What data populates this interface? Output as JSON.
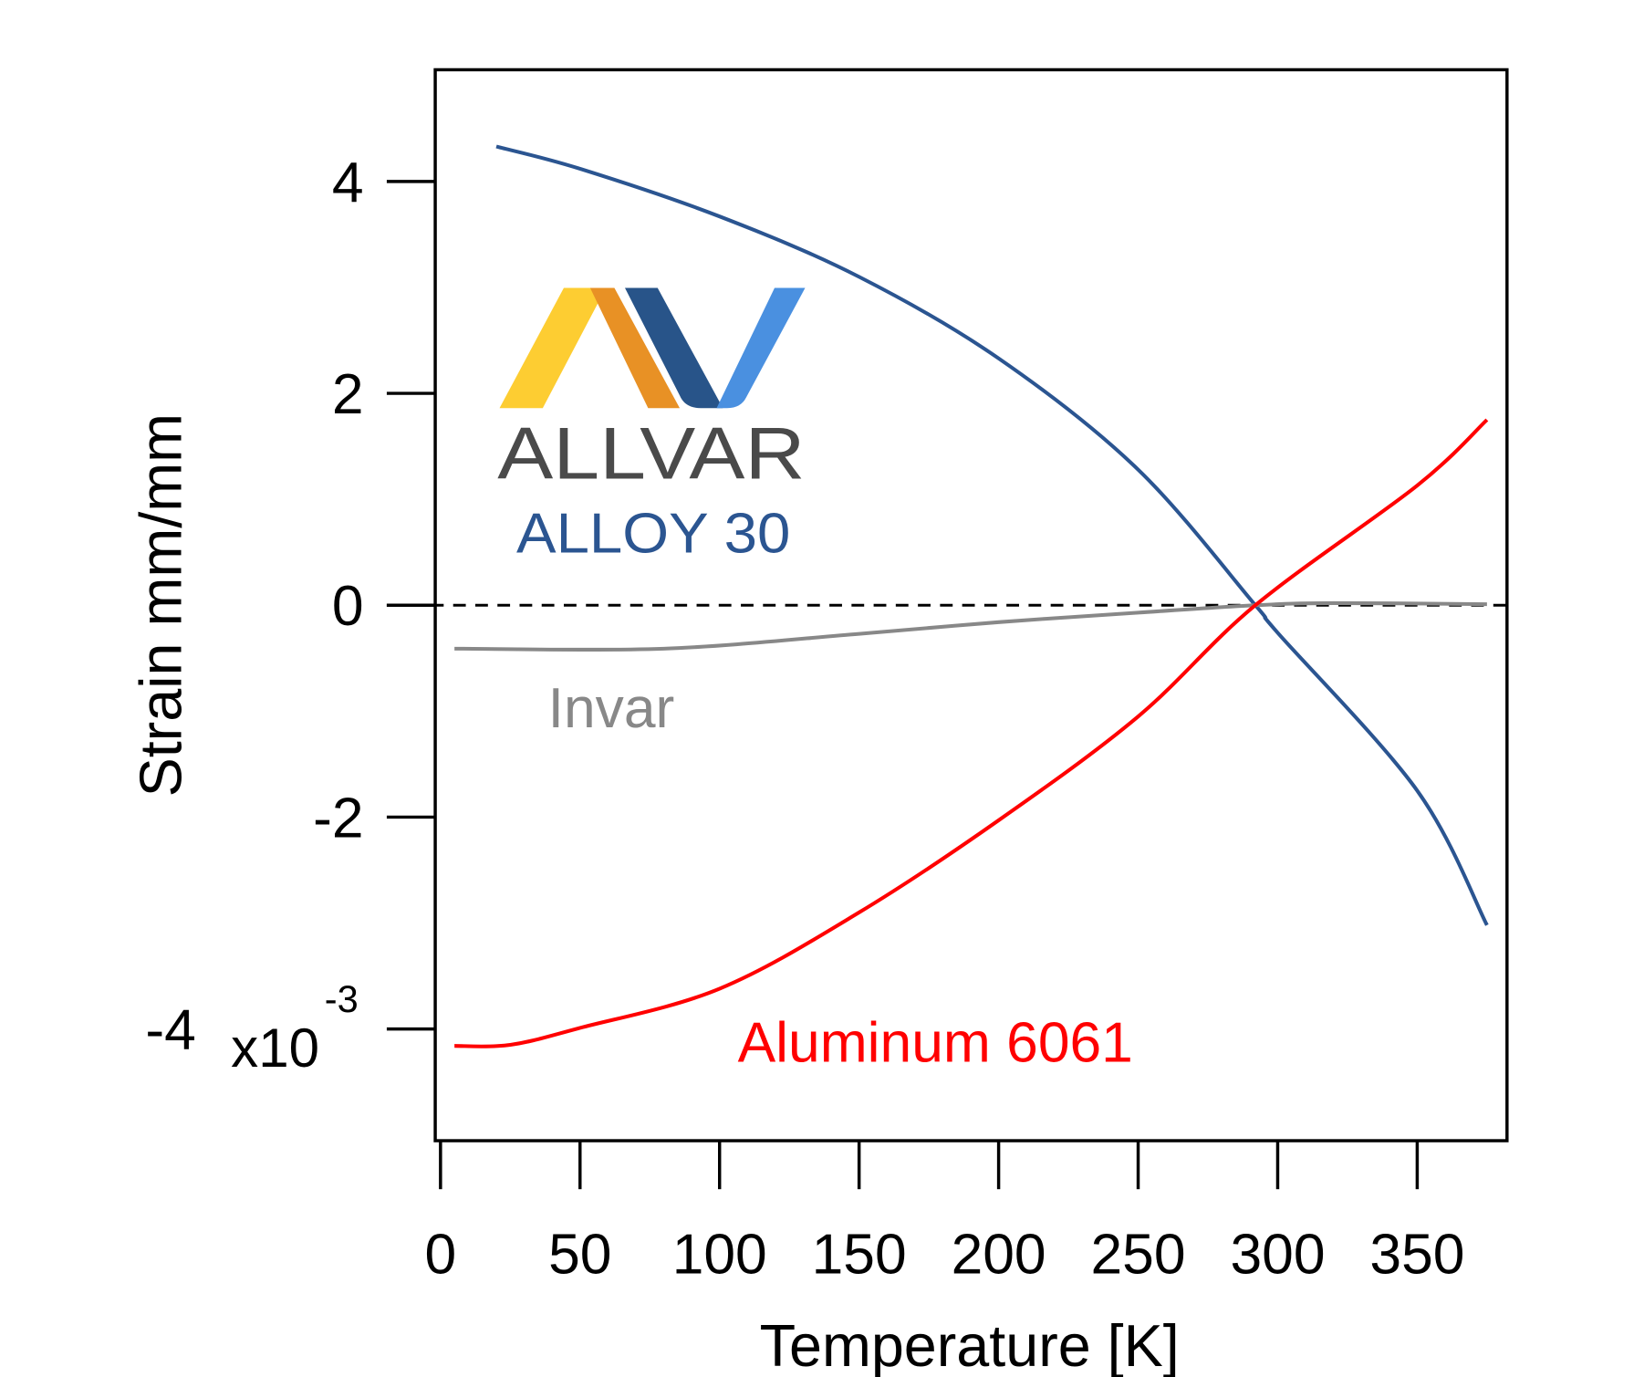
{
  "chart_data": {
    "type": "line",
    "xlabel": "Temperature [K]",
    "ylabel": "Strain mm/mm",
    "y_multiplier_label": "x10",
    "y_multiplier_exponent": "-3",
    "xlim": [
      -2,
      382
    ],
    "ylim": [
      -5.07,
      5.05
    ],
    "x_ticks": [
      0,
      50,
      100,
      150,
      200,
      250,
      300,
      350
    ],
    "x_tick_labels": [
      "0",
      "50",
      "100",
      "150",
      "200",
      "250",
      "300",
      "350"
    ],
    "y_ticks": [
      4,
      2,
      0,
      -2,
      -4
    ],
    "y_tick_labels": [
      "4",
      "2",
      "0",
      "-2",
      "-4"
    ],
    "grid": false,
    "reference_line": {
      "y": 0,
      "style": "dashed",
      "color": "#000000"
    },
    "series": [
      {
        "name": "ALLVAR ALLOY 30",
        "color": "#2b5591",
        "x": [
          20,
          50,
          100,
          150,
          200,
          250,
          292,
          300,
          350,
          375
        ],
        "y": [
          4.33,
          4.12,
          3.67,
          3.1,
          2.33,
          1.28,
          0,
          -0.26,
          -1.75,
          -3.02
        ]
      },
      {
        "name": "Invar",
        "color": "#888888",
        "x": [
          5,
          80,
          150,
          200,
          250,
          292,
          320,
          375
        ],
        "y": [
          -0.41,
          -0.41,
          -0.27,
          -0.16,
          -0.07,
          0,
          0.02,
          0.01
        ]
      },
      {
        "name": "Aluminum 6061",
        "color": "#ff0000",
        "x": [
          5,
          25,
          50,
          100,
          150,
          200,
          250,
          292,
          350,
          375
        ],
        "y": [
          -4.16,
          -4.15,
          -3.99,
          -3.62,
          -2.9,
          -2.03,
          -1.05,
          0,
          1.13,
          1.75
        ]
      }
    ],
    "annotations": {
      "logo_word": "ALLVAR",
      "logo_sub": "ALLOY 30",
      "invar": "Invar",
      "aluminum": "Aluminum 6061"
    }
  }
}
